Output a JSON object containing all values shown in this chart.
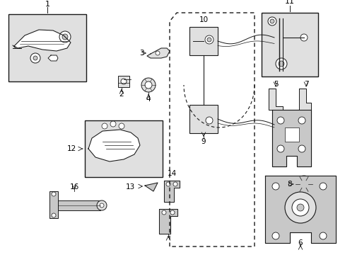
{
  "bg_color": "#ffffff",
  "line_color": "#1a1a1a",
  "gray_fill": "#c8c8c8",
  "light_gray": "#e0e0e0",
  "figsize": [
    4.89,
    3.6
  ],
  "dpi": 100
}
